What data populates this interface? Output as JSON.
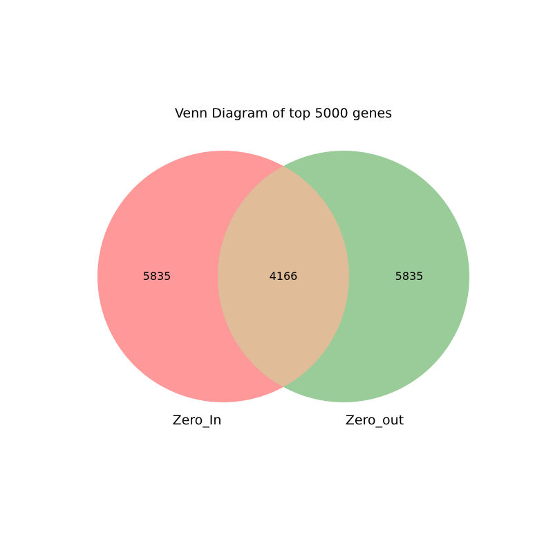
{
  "title": "Venn Diagram of top 5000 genes",
  "sets": [
    {
      "name": "Zero_In",
      "color": "#ff9999"
    },
    {
      "name": "Zero_out",
      "color": "#99cc99"
    }
  ],
  "intersection_color": "#e0bc98",
  "regions": {
    "only_a": "5835",
    "both": "4166",
    "only_b": "5835"
  }
}
